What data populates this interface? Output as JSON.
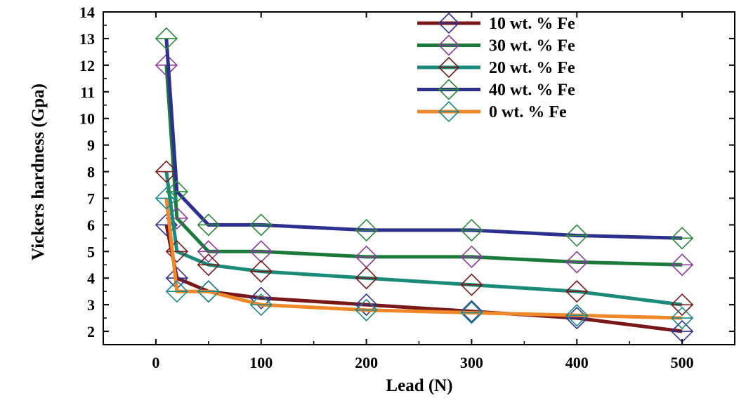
{
  "chart_data": {
    "type": "line",
    "xlabel": "Lead (N)",
    "ylabel": "Vickers hardness (Gpa)",
    "xlim": [
      -50,
      550
    ],
    "ylim": [
      1.5,
      14
    ],
    "x_ticks": [
      "0",
      "100",
      "200",
      "300",
      "400",
      "500"
    ],
    "y_ticks": [
      "2",
      "3",
      "4",
      "5",
      "6",
      "7",
      "8",
      "9",
      "10",
      "11",
      "12",
      "13",
      "14"
    ],
    "grid": false,
    "legend_position": "top-right",
    "series": [
      {
        "name": "10 wt. % Fe",
        "line_color": "#7a1818",
        "marker_color": "#303090",
        "x": [
          10,
          20,
          50,
          100,
          200,
          300,
          400,
          500
        ],
        "y": [
          6.0,
          4.0,
          3.5,
          3.25,
          3.0,
          2.75,
          2.5,
          2.0
        ]
      },
      {
        "name": "30 wt. % Fe",
        "line_color": "#1a7a3a",
        "marker_color": "#8a3a9a",
        "x": [
          10,
          20,
          50,
          100,
          200,
          300,
          400,
          500
        ],
        "y": [
          12.0,
          6.25,
          5.0,
          5.0,
          4.8,
          4.8,
          4.6,
          4.5
        ]
      },
      {
        "name": "20 wt. % Fe",
        "line_color": "#1a8a7a",
        "marker_color": "#7a1818",
        "x": [
          10,
          20,
          50,
          100,
          200,
          300,
          400,
          500
        ],
        "y": [
          8.0,
          5.0,
          4.5,
          4.25,
          4.0,
          3.75,
          3.5,
          3.0
        ]
      },
      {
        "name": "40 wt. % Fe",
        "line_color": "#2e3090",
        "marker_color": "#2a8a3a",
        "x": [
          10,
          20,
          50,
          100,
          200,
          300,
          400,
          500
        ],
        "y": [
          13.0,
          7.25,
          6.0,
          6.0,
          5.8,
          5.8,
          5.6,
          5.5
        ]
      },
      {
        "name": "0 wt. % Fe",
        "line_color": "#f0882a",
        "marker_color": "#1a8a8a",
        "x": [
          10,
          20,
          50,
          100,
          200,
          300,
          400,
          500
        ],
        "y": [
          7.0,
          3.5,
          3.5,
          3.0,
          2.8,
          2.7,
          2.6,
          2.5
        ]
      }
    ]
  }
}
